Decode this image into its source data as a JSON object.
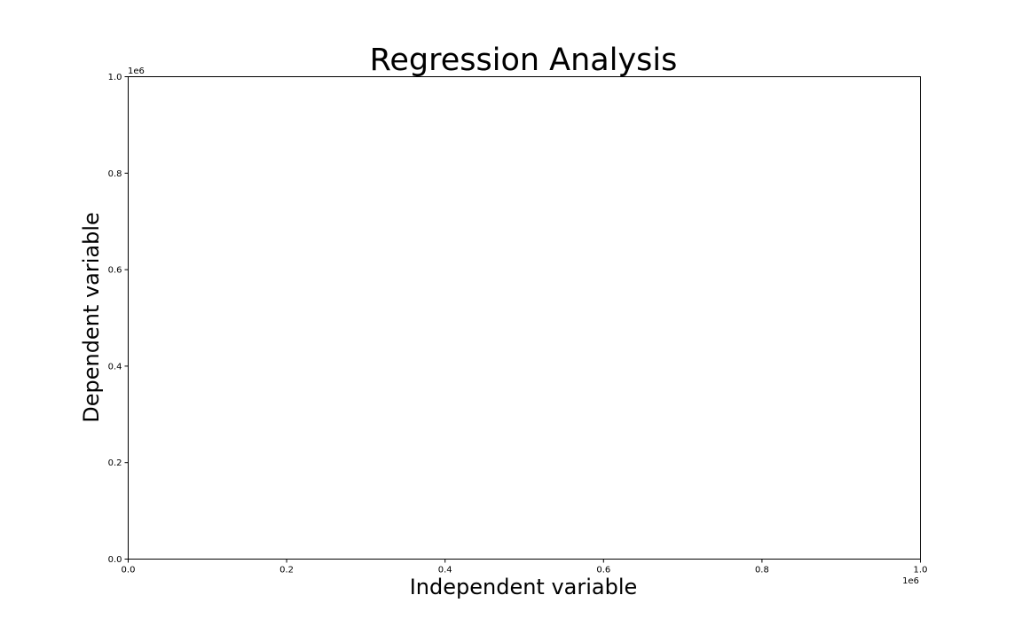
{
  "chart_data": {
    "type": "line",
    "title": "Regression Analysis",
    "xlabel": "Independent variable",
    "ylabel": "Dependent variable",
    "xlim": [
      0.0,
      1.0
    ],
    "ylim": [
      0.0,
      1.0
    ],
    "x_ticks": [
      "0.0",
      "0.2",
      "0.4",
      "0.6",
      "0.8",
      "1.0"
    ],
    "y_ticks": [
      "0.0",
      "0.2",
      "0.4",
      "0.6",
      "0.8",
      "1.0"
    ],
    "x_offset_text": "1e6",
    "y_offset_text": "1e6",
    "grid": false,
    "series": []
  }
}
